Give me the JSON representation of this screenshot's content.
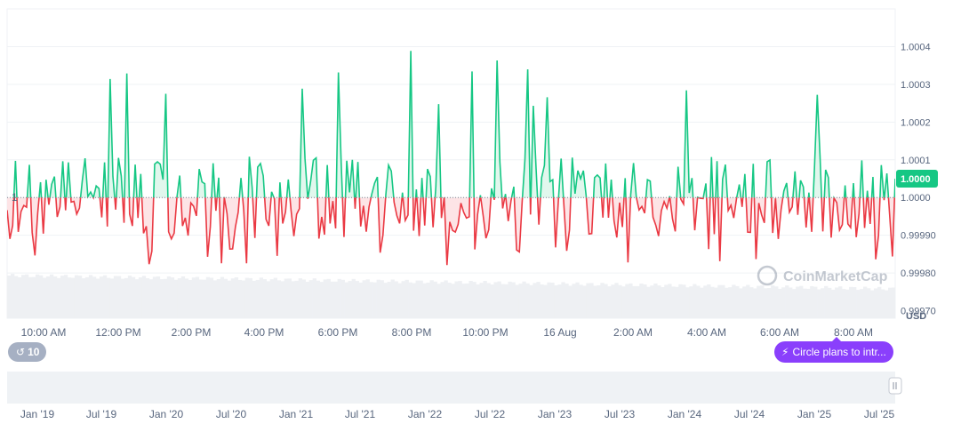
{
  "chart_data": {
    "type": "line",
    "title": "",
    "baseline": 1,
    "baseline_label": "1",
    "current_value_label": "1.0000",
    "currency_label": "USD",
    "y_axis": {
      "ticks": [
        "1.0004",
        "1.0003",
        "1.0002",
        "1.0001",
        "1.0000",
        "0.99990",
        "0.99980",
        "0.99970"
      ],
      "range": [
        0.99968,
        1.0005
      ]
    },
    "x_labels": [
      "10:00 AM",
      "12:00 PM",
      "2:00 PM",
      "4:00 PM",
      "6:00 PM",
      "8:00 PM",
      "10:00 PM",
      "16 Aug",
      "2:00 AM",
      "4:00 AM",
      "6:00 AM",
      "8:00 AM"
    ],
    "price_points": 320,
    "volume_note": "trading volume shown as light grey bars beneath the price line",
    "overview_labels": [
      "Jan '19",
      "Jul '19",
      "Jan '20",
      "Jul '20",
      "Jan '21",
      "Jul '21",
      "Jan '22",
      "Jul '22",
      "Jan '23",
      "Jul '23",
      "Jan '24",
      "Jul '24",
      "Jan '25",
      "Jul '25"
    ],
    "colors": {
      "up": "#16c784",
      "down": "#ea3943",
      "up_fill": "#d9f5e9",
      "down_fill": "#fde1e3",
      "badge": "#16c784",
      "event": "#8a3ffc"
    }
  },
  "watermark": "CoinMarketCap",
  "event_pill": {
    "label": "Circle plans to intr...",
    "icon": "lightning-icon"
  },
  "history_pill": {
    "count": "10",
    "icon": "history-icon"
  }
}
